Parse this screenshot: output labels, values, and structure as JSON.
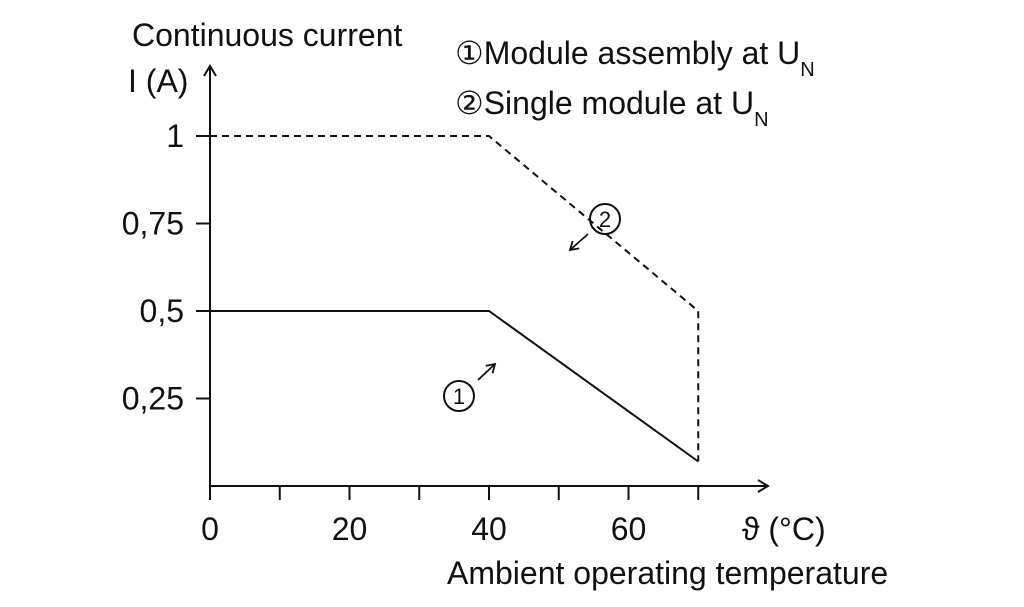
{
  "chart_data": {
    "type": "line",
    "ylabel_line1": "Continuous current",
    "ylabel_line2": "I (A)",
    "xlabel_unit": "ϑ (°C)",
    "xlabel": "Ambient operating temperature",
    "xlim": [
      0,
      80
    ],
    "ylim": [
      0,
      1.2
    ],
    "x_ticks": [
      0,
      10,
      20,
      30,
      40,
      50,
      60,
      70
    ],
    "x_tick_labels": [
      {
        "value": 0,
        "label": "0"
      },
      {
        "value": 20,
        "label": "20"
      },
      {
        "value": 40,
        "label": "40"
      },
      {
        "value": 60,
        "label": "60"
      }
    ],
    "y_ticks": [
      {
        "value": 0.25,
        "label": "0,25"
      },
      {
        "value": 0.5,
        "label": "0,5"
      },
      {
        "value": 0.75,
        "label": "0,75"
      },
      {
        "value": 1,
        "label": "1"
      }
    ],
    "series": [
      {
        "marker": "①",
        "name_main": "Module assembly at U",
        "name_sub": "N",
        "style": "solid",
        "points": [
          [
            0,
            0.5
          ],
          [
            40,
            0.5
          ],
          [
            70,
            0.07
          ]
        ]
      },
      {
        "marker": "②",
        "name_main": "Single module at U",
        "name_sub": "N",
        "style": "dashed",
        "points": [
          [
            0,
            1
          ],
          [
            40,
            1
          ],
          [
            70,
            0.5
          ],
          [
            70,
            0.07
          ]
        ]
      }
    ],
    "grid": false,
    "legend_position": "top-right",
    "colors": {
      "line": "#111111",
      "background": "#ffffff"
    }
  }
}
